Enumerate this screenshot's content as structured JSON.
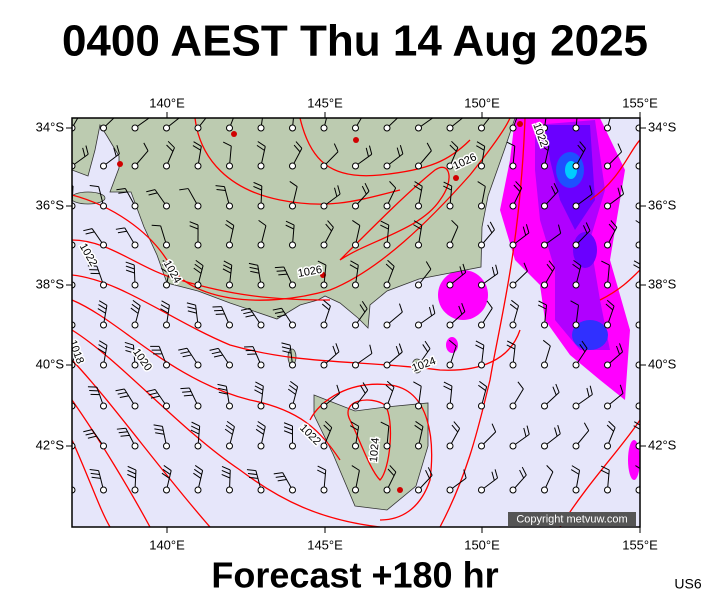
{
  "header": {
    "title": "0400 AEST Thu 14 Aug 2025"
  },
  "map": {
    "lon_labels": [
      "140°E",
      "145°E",
      "150°E",
      "155°E"
    ],
    "lat_labels": [
      "34°S",
      "36°S",
      "38°S",
      "40°S",
      "42°S"
    ],
    "isobar_labels": [
      "1026",
      "1026",
      "1024",
      "1022",
      "1020",
      "1018",
      "1024",
      "1022",
      "1024",
      "1022"
    ],
    "copyright": "Copyright metvuw.com"
  },
  "footer": {
    "forecast": "Forecast +180 hr",
    "code": "US6"
  }
}
